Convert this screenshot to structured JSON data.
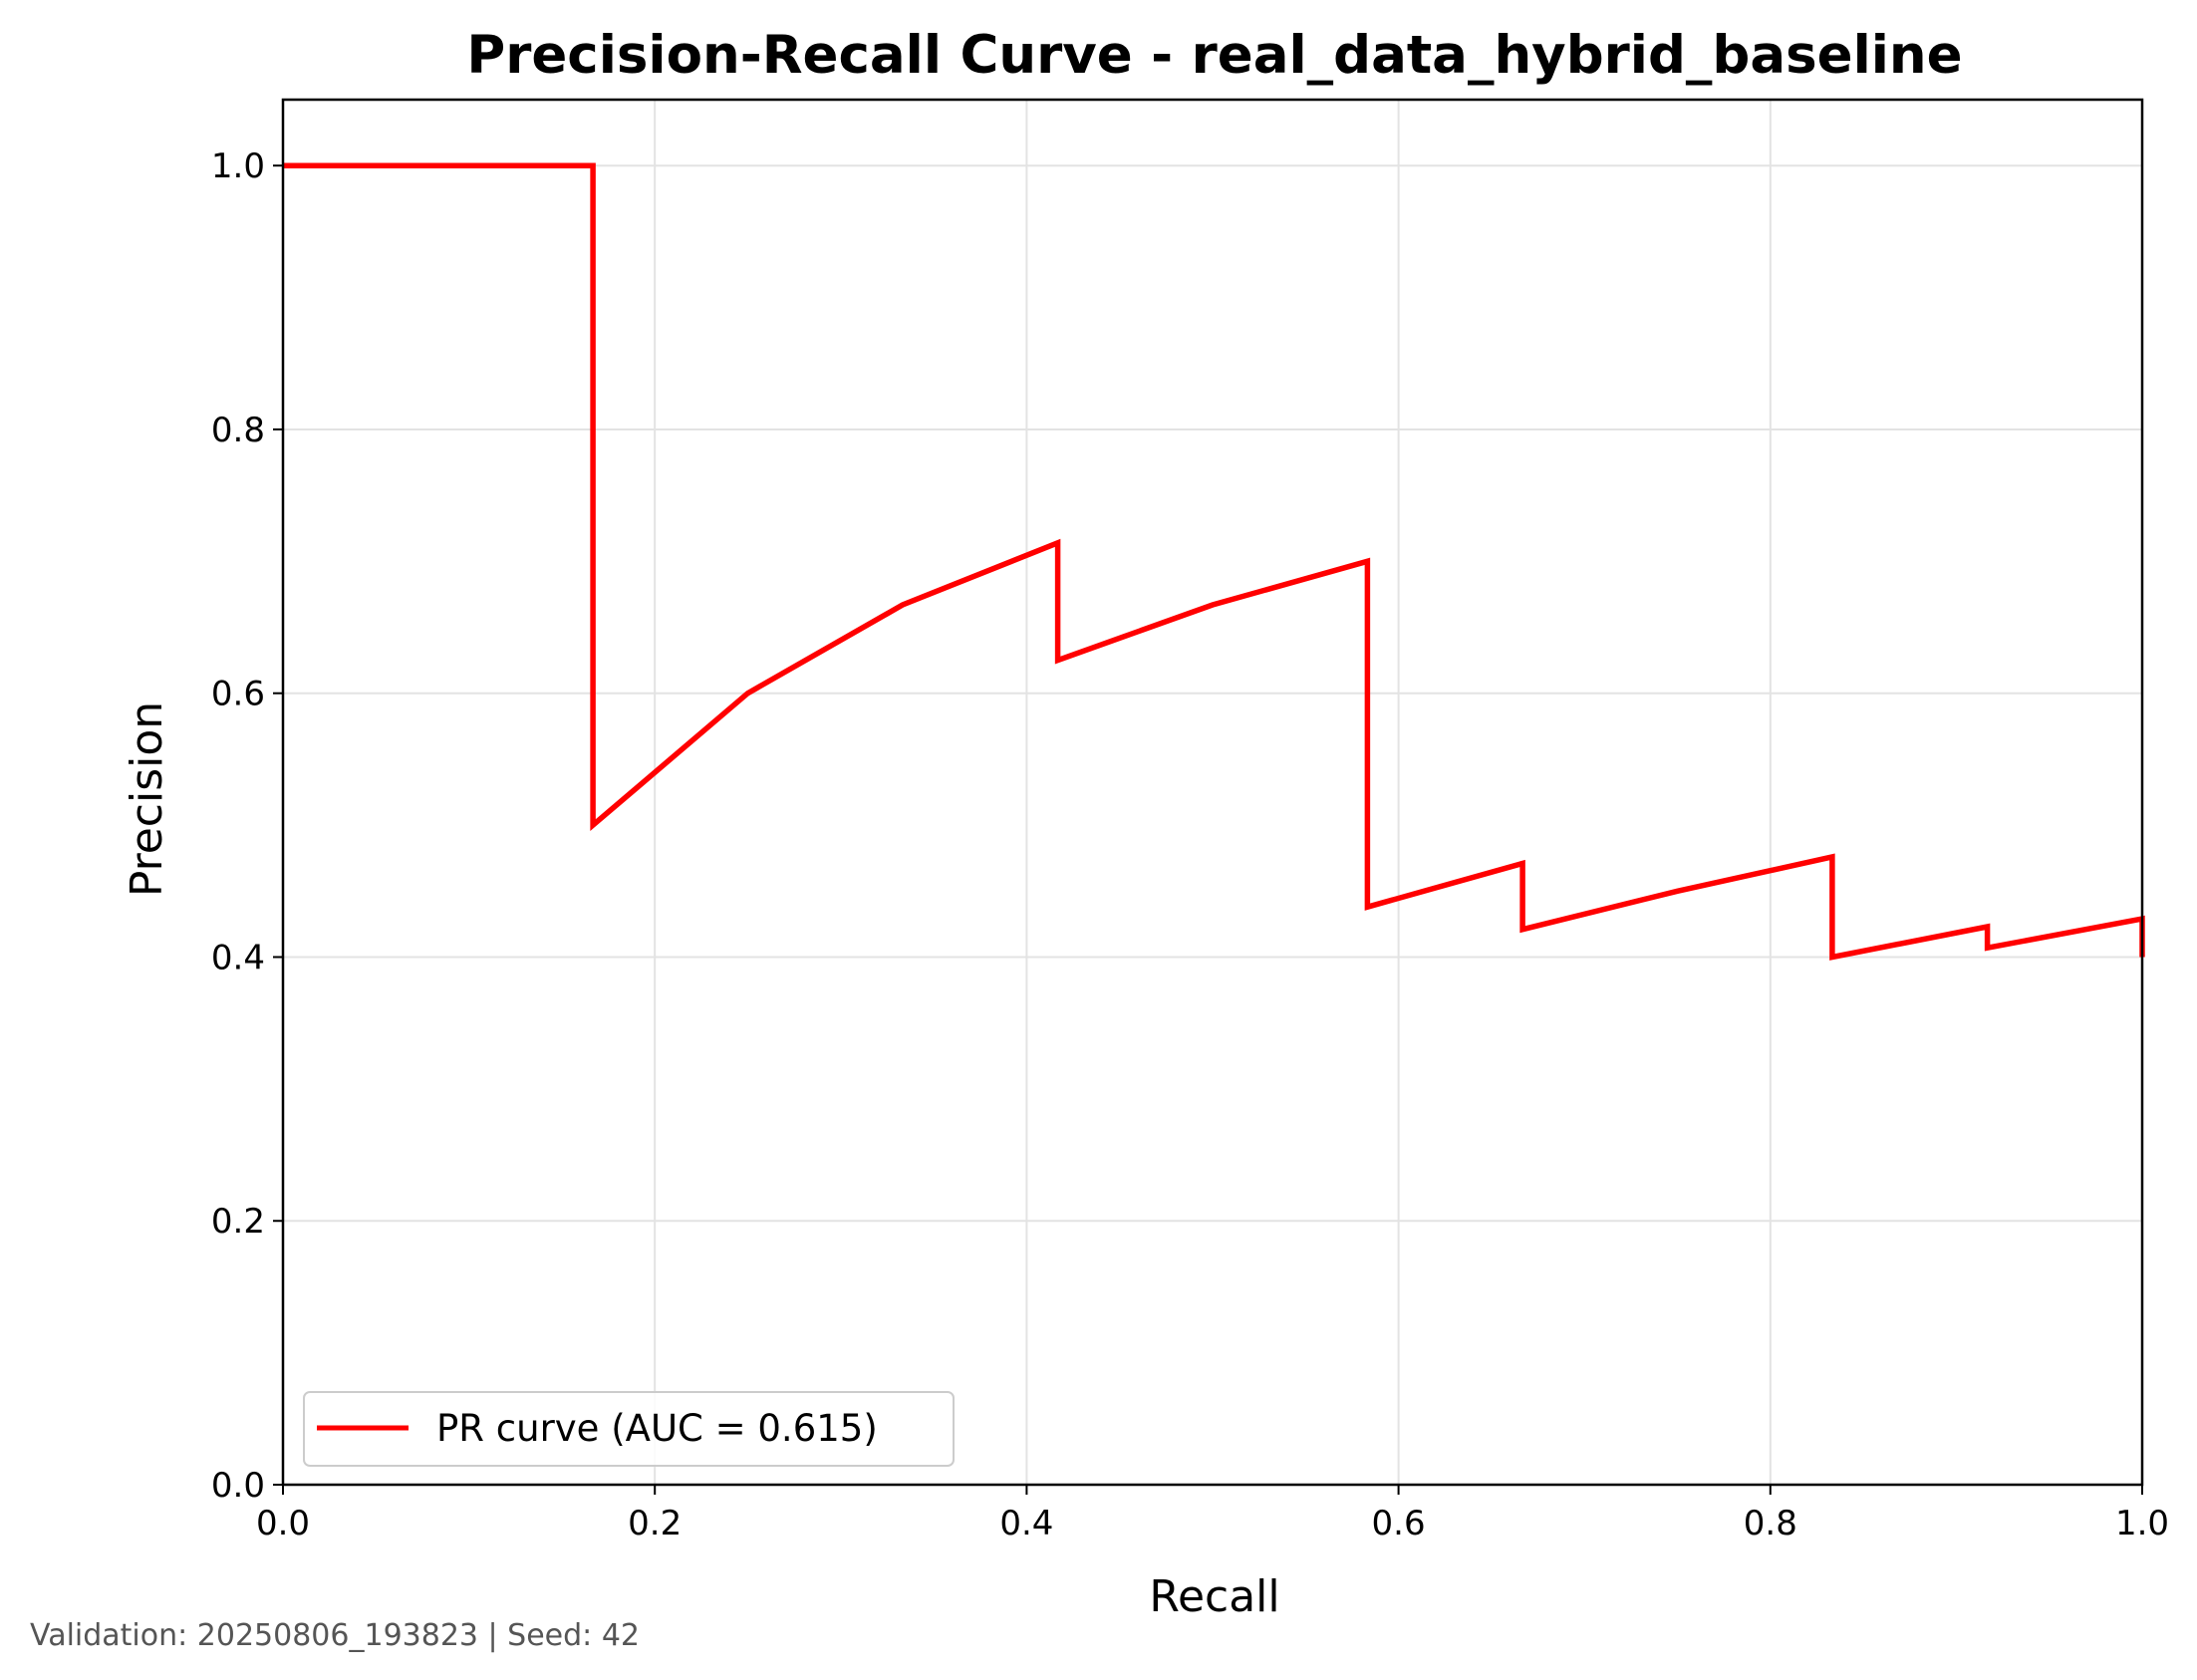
{
  "chart_data": {
    "type": "line",
    "title": "Precision-Recall Curve - real_data_hybrid_baseline",
    "xlabel": "Recall",
    "ylabel": "Precision",
    "xlim": [
      0.0,
      1.0
    ],
    "ylim": [
      0.0,
      1.05
    ],
    "xticks": [
      "0.0",
      "0.2",
      "0.4",
      "0.6",
      "0.8",
      "1.0"
    ],
    "yticks": [
      "0.0",
      "0.2",
      "0.4",
      "0.6",
      "0.8",
      "1.0"
    ],
    "grid": true,
    "legend": "lower-left",
    "series": [
      {
        "name": "PR curve (AUC = 0.615)",
        "color": "#ff0000",
        "x": [
          0.0,
          0.1667,
          0.1667,
          0.25,
          0.3333,
          0.4167,
          0.4167,
          0.5,
          0.5833,
          0.5833,
          0.6667,
          0.6667,
          0.75,
          0.8333,
          0.8333,
          0.9167,
          0.9167,
          1.0,
          1.0
        ],
        "y": [
          1.0,
          1.0,
          0.5,
          0.6,
          0.667,
          0.714,
          0.625,
          0.667,
          0.7,
          0.438,
          0.471,
          0.421,
          0.45,
          0.476,
          0.4,
          0.423,
          0.407,
          0.429,
          0.4
        ]
      }
    ]
  },
  "footer": "Validation: 20250806_193823 | Seed: 42"
}
